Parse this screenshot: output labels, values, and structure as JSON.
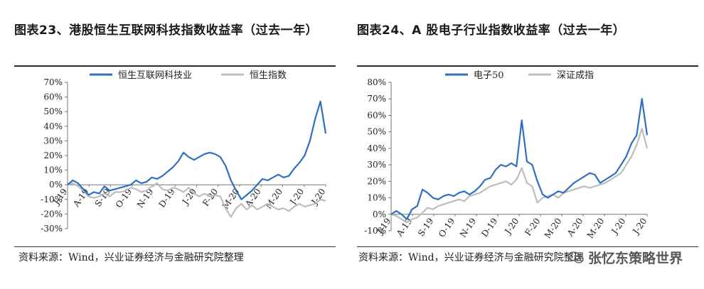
{
  "charts": [
    {
      "title": "图表23、港股恒生互联网科技指数收益率（过去一年）",
      "source": "资料来源：Wind，兴业证券经济与金融研究院整理",
      "chart_data": {
        "type": "line",
        "xlabel": "",
        "ylabel": "",
        "ylim": [
          -30,
          70
        ],
        "y_ticks": [
          -30,
          -20,
          -10,
          0,
          10,
          20,
          30,
          40,
          50,
          60,
          70
        ],
        "y_tick_labels": [
          "-30%",
          "-20%",
          "-10%",
          "0%",
          "10%",
          "20%",
          "30%",
          "40%",
          "50%",
          "60%",
          "70%"
        ],
        "x_tick_labels": [
          "J-19",
          "A-19",
          "S-19",
          "O-19",
          "N-19",
          "D-19",
          "J-20",
          "F-20",
          "M-20",
          "A-20",
          "M-20",
          "J-20",
          "J-20"
        ],
        "legend_position": "top",
        "grid": false,
        "series": [
          {
            "name": "恒生互联网科技业",
            "color": "#2f6fc3",
            "values": [
              0,
              3,
              1,
              -3,
              -7,
              -5,
              -6,
              -1,
              -4,
              -3,
              -2,
              -1,
              0,
              3,
              1,
              2,
              5,
              4,
              6,
              9,
              12,
              16,
              22,
              19,
              17,
              19,
              21,
              22,
              21,
              19,
              13,
              3,
              -4,
              -10,
              -7,
              -4,
              0,
              4,
              3,
              5,
              7,
              5,
              6,
              11,
              15,
              20,
              30,
              45,
              57,
              35
            ]
          },
          {
            "name": "恒生指数",
            "color": "#bdbdbd",
            "values": [
              0,
              1,
              -1,
              -4,
              -8,
              -9,
              -8,
              -6,
              -8,
              -5,
              -5,
              -4,
              -2,
              -3,
              -5,
              -4,
              -1,
              1,
              -3,
              -4,
              -2,
              -3,
              -5,
              -2,
              -6,
              -8,
              -6,
              -8,
              -7,
              -8,
              -16,
              -22,
              -16,
              -13,
              -17,
              -14,
              -17,
              -15,
              -13,
              -15,
              -17,
              -16,
              -18,
              -15,
              -13,
              -15,
              -14,
              -13,
              -10,
              -11
            ]
          }
        ]
      }
    },
    {
      "title": "图表24、A 股电子行业指数收益率（过去一年）",
      "source": "资料来源：Wind，兴业证券经济与金融研究院整理",
      "watermark": "张忆东策略世界",
      "chart_data": {
        "type": "line",
        "xlabel": "",
        "ylabel": "",
        "ylim": [
          -10,
          80
        ],
        "y_ticks": [
          -10,
          0,
          10,
          20,
          30,
          40,
          50,
          60,
          70,
          80
        ],
        "y_tick_labels": [
          "-10%",
          "0%",
          "10%",
          "20%",
          "30%",
          "40%",
          "50%",
          "60%",
          "70%",
          "80%"
        ],
        "x_tick_labels": [
          "J-19",
          "A-19",
          "S-19",
          "O-19",
          "N-19",
          "D-19",
          "J-20",
          "F-20",
          "M-20",
          "A-20",
          "M-20",
          "J-20",
          "J-20"
        ],
        "legend_position": "top",
        "grid": false,
        "series": [
          {
            "name": "电子50",
            "color": "#2f6fc3",
            "values": [
              0,
              2,
              0,
              -3,
              3,
              5,
              15,
              13,
              10,
              9,
              11,
              12,
              11,
              13,
              14,
              12,
              14,
              17,
              21,
              22,
              27,
              30,
              29,
              31,
              29,
              57,
              32,
              30,
              20,
              12,
              10,
              12,
              14,
              13,
              16,
              19,
              21,
              23,
              25,
              24,
              19,
              21,
              23,
              25,
              30,
              35,
              43,
              48,
              70,
              48
            ]
          },
          {
            "name": "深证成指",
            "color": "#bdbdbd",
            "values": [
              0,
              -1,
              -3,
              -5,
              -3,
              -2,
              1,
              4,
              3,
              5,
              6,
              7,
              8,
              9,
              8,
              11,
              12,
              13,
              15,
              17,
              18,
              19,
              20,
              18,
              21,
              28,
              19,
              17,
              7,
              10,
              11,
              12,
              10,
              13,
              14,
              15,
              16,
              17,
              16,
              17,
              18,
              19,
              21,
              23,
              25,
              30,
              35,
              42,
              52,
              40
            ]
          }
        ]
      }
    }
  ]
}
